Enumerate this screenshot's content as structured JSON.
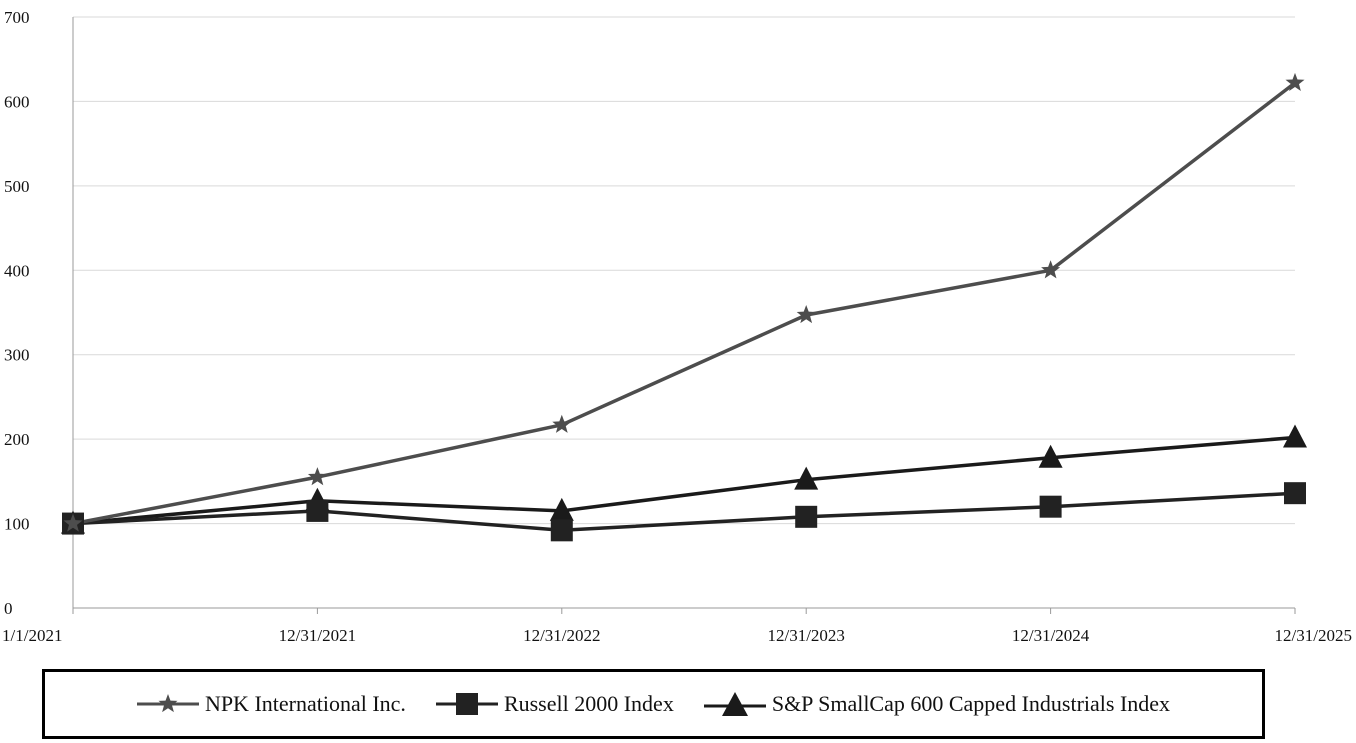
{
  "chart_data": {
    "type": "line",
    "categories": [
      "1/1/2021",
      "12/31/2021",
      "12/31/2022",
      "12/31/2023",
      "12/31/2024",
      "12/31/2025"
    ],
    "ylim": [
      0,
      700
    ],
    "yticks": [
      0,
      100,
      200,
      300,
      400,
      500,
      600,
      700
    ],
    "grid": true,
    "legend_position": "bottom",
    "series": [
      {
        "name": "NPK International Inc.",
        "values": [
          100,
          155,
          217,
          347,
          400,
          622
        ],
        "color": "#4d4d4d",
        "marker": "star"
      },
      {
        "name": "Russell 2000 Index",
        "values": [
          100,
          115,
          92,
          108,
          120,
          136
        ],
        "color": "#222222",
        "marker": "square"
      },
      {
        "name": "S&P SmallCap 600 Capped Industrials Index",
        "values": [
          100,
          127,
          115,
          152,
          178,
          202
        ],
        "color": "#1a1a1a",
        "marker": "triangle"
      }
    ]
  }
}
